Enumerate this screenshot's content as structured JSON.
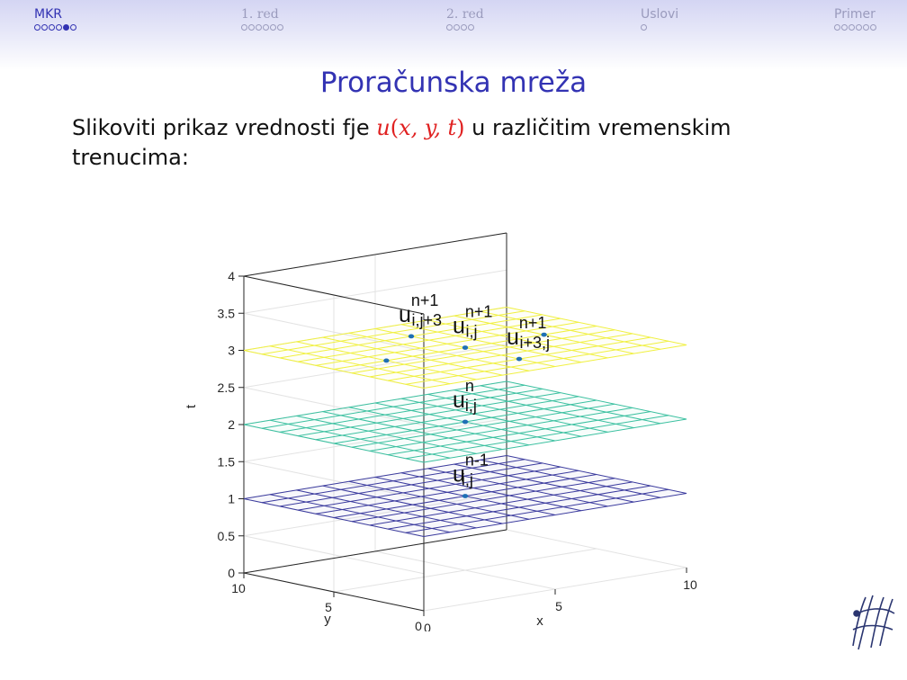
{
  "nav": {
    "sections": [
      {
        "label": "MKR",
        "dots": 6,
        "filled_index": 4,
        "active": true
      },
      {
        "label": "1. red",
        "dots": 6,
        "active": false
      },
      {
        "label": "2. red",
        "dots": 4,
        "active": false
      },
      {
        "label": "Uslovi",
        "dots": 1,
        "active": false
      },
      {
        "label": "Primer",
        "dots": 6,
        "active": false
      }
    ]
  },
  "slide": {
    "title": "Proračunska mreža",
    "text_before": "Slikoviti prikaz vrednosti fje ",
    "math_u": "u",
    "math_args": "x, y, t",
    "text_after": " u različitim vremenskim trenucima:"
  },
  "chart_data": {
    "type": "scatter",
    "subtype": "3d-planes",
    "xlabel": "x",
    "ylabel": "y",
    "zlabel": "t",
    "xlim": [
      0,
      10
    ],
    "ylim": [
      0,
      10
    ],
    "zlim": [
      0,
      4
    ],
    "x_ticks": [
      "0",
      "5",
      "10"
    ],
    "y_ticks": [
      "0",
      "5",
      "10"
    ],
    "z_ticks": [
      "0",
      "0.5",
      "1",
      "1.5",
      "2",
      "2.5",
      "3",
      "3.5",
      "4"
    ],
    "grid": true,
    "planes": [
      {
        "t": 1,
        "color": "#3b3b9e"
      },
      {
        "t": 2,
        "color": "#3bc0a0"
      },
      {
        "t": 3,
        "color": "#f0f040"
      }
    ],
    "points": [
      {
        "x": 5,
        "y": 5,
        "t": 1,
        "label_base": "u",
        "label_sup": "n-1",
        "label_sub": "i,j"
      },
      {
        "x": 5,
        "y": 5,
        "t": 2,
        "label_base": "u",
        "label_sup": "n",
        "label_sub": "i,j"
      },
      {
        "x": 5,
        "y": 5,
        "t": 3,
        "label_base": "u",
        "label_sup": "n+1",
        "label_sub": "i,j"
      },
      {
        "x": 2,
        "y": 5,
        "t": 3
      },
      {
        "x": 8,
        "y": 5,
        "t": 3
      },
      {
        "x": 5,
        "y": 2,
        "t": 3,
        "label_base": "u",
        "label_sup": "n+1",
        "label_sub": "i+3,j"
      },
      {
        "x": 5,
        "y": 8,
        "t": 3,
        "label_base": "u",
        "label_sup": "n+1",
        "label_sub": "i,j+3"
      }
    ]
  }
}
